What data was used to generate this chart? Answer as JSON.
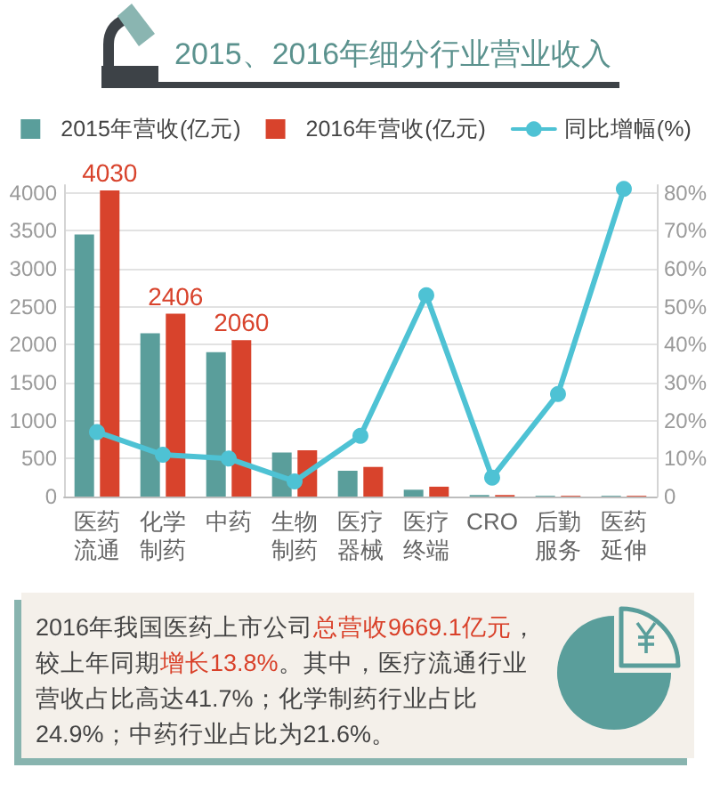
{
  "chart_data": {
    "type": "bar",
    "title": "2015、2016年细分行业营业收入",
    "categories": [
      "医药流通",
      "化学制药",
      "中药",
      "生物制药",
      "医疗器械",
      "医疗终端",
      "CRO",
      "后勤服务",
      "医药延伸"
    ],
    "series": [
      {
        "name": "2015年营收(亿元)",
        "color": "#5a9e9b",
        "values": [
          3450,
          2150,
          1900,
          580,
          340,
          90,
          20,
          10,
          10
        ]
      },
      {
        "name": "2016年营收(亿元)",
        "color": "#d8432c",
        "values": [
          4030,
          2406,
          2060,
          610,
          390,
          130,
          20,
          10,
          10
        ],
        "value_labels": [
          "4030",
          "2406",
          "2060",
          null,
          null,
          null,
          null,
          null,
          null
        ]
      },
      {
        "name": "同比增幅(%)",
        "type": "line",
        "axis": "y2",
        "color": "#4ec2d4",
        "values": [
          17,
          11,
          10,
          4,
          16,
          53,
          5,
          27,
          81
        ]
      }
    ],
    "ylim": [
      0,
      4100
    ],
    "yticks": [
      0,
      500,
      1000,
      1500,
      2000,
      2500,
      3000,
      3500,
      4000
    ],
    "y2lim": [
      0,
      82
    ],
    "y2ticks": [
      0,
      {
        "value": 10,
        "label": "10%"
      },
      {
        "value": 20,
        "label": "20%"
      },
      {
        "value": 30,
        "label": "30%"
      },
      {
        "value": 40,
        "label": "40%"
      },
      {
        "value": 50,
        "label": "50%"
      },
      {
        "value": 60,
        "label": "60%"
      },
      {
        "value": 70,
        "label": "70%"
      },
      {
        "value": 80,
        "label": "80%"
      }
    ],
    "grid": "y",
    "legend": "top",
    "marker": "circle",
    "annotations": [
      "2016年我国医药上市公司",
      "总营收9669.1亿元",
      "，较上年同期",
      "增长13.8%",
      "。其中，医疗流通行业营收占比高达41.7%；化学制药行业占比24.9%；中药行业占比为21.6%。"
    ]
  }
}
